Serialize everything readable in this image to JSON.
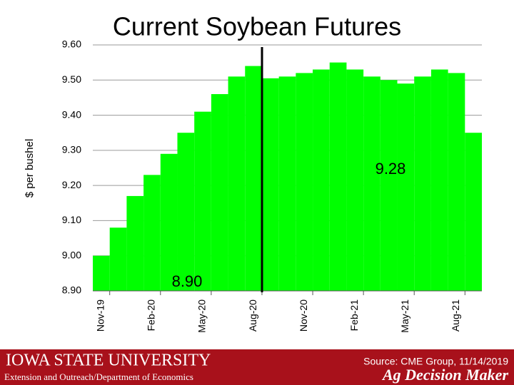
{
  "chart_data": {
    "type": "bar",
    "title": "Current Soybean Futures",
    "y_label": "$ per bushel",
    "categories": [
      "Nov-19",
      null,
      null,
      "Feb-20",
      null,
      null,
      "May-20",
      null,
      null,
      "Aug-20",
      null,
      null,
      "Nov-20",
      null,
      null,
      "Feb-21",
      null,
      null,
      "May-21",
      null,
      null,
      "Aug-21",
      null
    ],
    "values": [
      9.0,
      9.08,
      9.17,
      9.23,
      9.29,
      9.35,
      9.41,
      9.46,
      9.51,
      9.54,
      9.505,
      9.51,
      9.52,
      9.53,
      9.55,
      9.53,
      9.51,
      9.5,
      9.49,
      9.51,
      9.53,
      9.52,
      9.35
    ],
    "color": "#00ff00",
    "ylim": [
      8.9,
      9.6
    ],
    "yticks": [
      {
        "value": 8.9,
        "label": "8.90"
      },
      {
        "value": 9.0,
        "label": "9.00"
      },
      {
        "value": 9.1,
        "label": "9.10"
      },
      {
        "value": 9.2,
        "label": "9.20"
      },
      {
        "value": 9.3,
        "label": "9.30"
      },
      {
        "value": 9.4,
        "label": "9.40"
      },
      {
        "value": 9.5,
        "label": "9.50"
      },
      {
        "value": 9.6,
        "label": "9.60"
      }
    ],
    "grid": true,
    "annotations": [
      "9.28",
      "8.90"
    ],
    "footer": {
      "university": "IOWA STATE UNIVERSITY",
      "department": "Extension and Outreach/Department of Economics",
      "source": "Source: CME Group, 11/14/2019",
      "brand": "Ag Decision Maker"
    }
  }
}
